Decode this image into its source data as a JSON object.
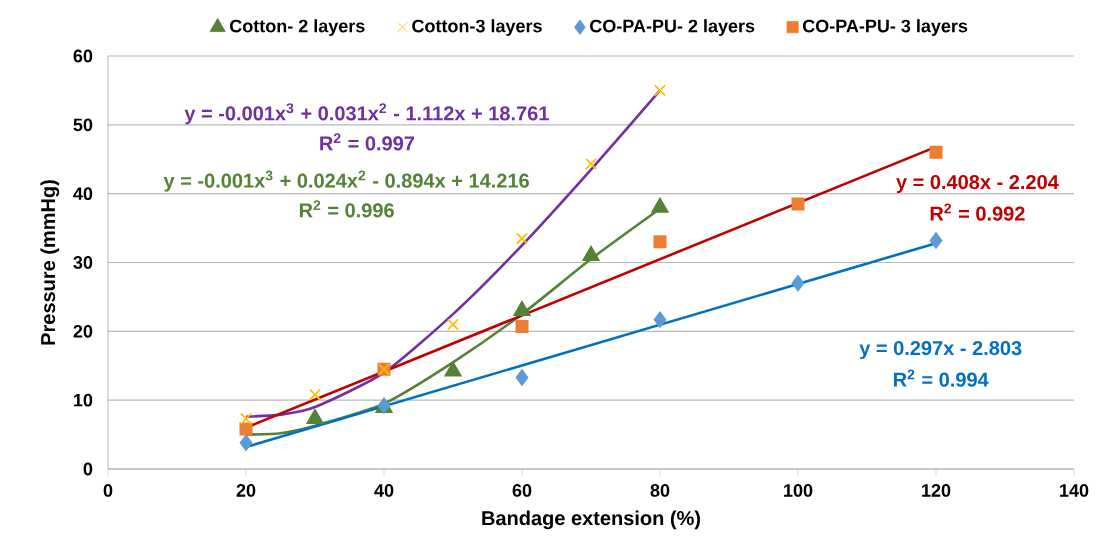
{
  "chart_data": {
    "type": "scatter",
    "xlabel": "Bandage extension (%)",
    "ylabel": "Pressure (mmHg)",
    "xlim": [
      0,
      140
    ],
    "xticks": [
      0,
      20,
      40,
      60,
      80,
      100,
      120,
      140
    ],
    "ylim": [
      0,
      60
    ],
    "yticks": [
      0,
      10,
      20,
      30,
      40,
      50,
      60
    ],
    "grid": "y",
    "legend": "top",
    "series": [
      {
        "name": "Cotton- 2 layers",
        "marker": "triangle",
        "color": "#548235",
        "x": [
          30,
          40,
          50,
          60,
          70,
          80
        ],
        "values": [
          7.3,
          8.9,
          14.2,
          23,
          31,
          38
        ]
      },
      {
        "name": "Cotton-3 layers",
        "marker": "cross",
        "color": "#ffc000",
        "x": [
          20,
          30,
          40,
          50,
          60,
          70,
          80
        ],
        "values": [
          7.3,
          10.8,
          14.5,
          21,
          33.5,
          44.3,
          55
        ]
      },
      {
        "name": "CO-PA-PU- 2 layers",
        "marker": "diamond",
        "color": "#5b9bd5",
        "x": [
          20,
          40,
          60,
          80,
          100,
          120
        ],
        "values": [
          3.8,
          9.2,
          13.3,
          21.7,
          27,
          33.2
        ]
      },
      {
        "name": "CO-PA-PU- 3 layers",
        "marker": "square",
        "color": "#ed7d31",
        "x": [
          20,
          40,
          60,
          80,
          100,
          120
        ],
        "values": [
          5.8,
          14.5,
          20.7,
          33,
          38.5,
          46
        ]
      },
      {
        "type": "line",
        "marker": "none",
        "color": "#7030a0",
        "x": [
          20,
          25,
          30,
          40,
          50,
          60,
          70,
          80
        ],
        "values": [
          7.6,
          7.9,
          9,
          14,
          22.5,
          32.5,
          43.5,
          55
        ]
      },
      {
        "type": "line",
        "marker": "none",
        "color": "#548235",
        "x": [
          20,
          25,
          30,
          40,
          50,
          60,
          70,
          80
        ],
        "values": [
          5,
          5.2,
          6.3,
          9.5,
          15.5,
          22.5,
          30.5,
          37.8
        ]
      },
      {
        "type": "line",
        "marker": "none",
        "color": "#c00000",
        "x": [
          20,
          120
        ],
        "values": [
          6,
          46.8
        ]
      },
      {
        "type": "line",
        "marker": "none",
        "color": "#0070c0",
        "x": [
          20,
          120
        ],
        "values": [
          3.2,
          32.8
        ]
      }
    ],
    "annotations": [
      "y = -0.001x$^{3}$ + 0.031x$^{2}$ - 1.112x + 18.761",
      "R$^{2}$ = 0.997",
      "y = -0.001x$^{3}$ + 0.024x$^{2}$ - 0.894x + 14.216",
      "R$^{2}$ = 0.996",
      "y = 0.408x - 2.204",
      "R$^{2}$ = 0.992",
      "y = 0.297x - 2.803",
      "R$^{2}$ = 0.994"
    ]
  }
}
